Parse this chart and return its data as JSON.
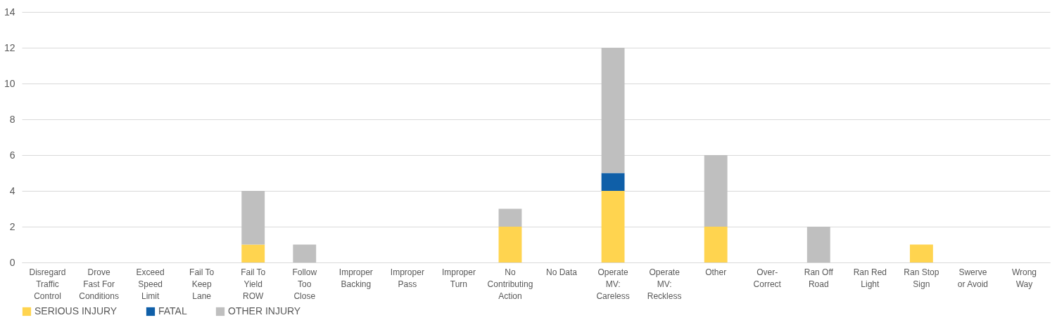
{
  "chart_data": {
    "type": "bar",
    "stacked": true,
    "categories": [
      "Disregard Traffic Control",
      "Drove Fast For Conditions",
      "Exceed Speed Limit",
      "Fail To Keep Lane",
      "Fail To Yield ROW",
      "Follow Too Close",
      "Improper Backing",
      "Improper Pass",
      "Improper Turn",
      "No Contributing Action",
      "No Data",
      "Operate MV: Careless",
      "Operate MV: Reckless",
      "Other",
      "Over-Correct",
      "Ran Off Road",
      "Ran Red Light",
      "Ran Stop Sign",
      "Swerve or Avoid",
      "Wrong Way"
    ],
    "series": [
      {
        "name": "SERIOUS INJURY",
        "color": "#ffd44f",
        "values": [
          0,
          0,
          0,
          0,
          1,
          0,
          0,
          0,
          0,
          2,
          0,
          4,
          0,
          2,
          0,
          0,
          0,
          1,
          0,
          0
        ]
      },
      {
        "name": "FATAL",
        "color": "#0f5fa8",
        "values": [
          0,
          0,
          0,
          0,
          0,
          0,
          0,
          0,
          0,
          0,
          0,
          1,
          0,
          0,
          0,
          0,
          0,
          0,
          0,
          0
        ]
      },
      {
        "name": "OTHER INJURY",
        "color": "#bfbfbf",
        "values": [
          0,
          0,
          0,
          0,
          3,
          1,
          0,
          0,
          0,
          1,
          0,
          7,
          0,
          4,
          0,
          2,
          0,
          0,
          0,
          0
        ]
      }
    ],
    "ylim": [
      0,
      14
    ],
    "yticks": [
      0,
      2,
      4,
      6,
      8,
      10,
      12,
      14
    ],
    "grid": "y",
    "legend": "bottom"
  }
}
